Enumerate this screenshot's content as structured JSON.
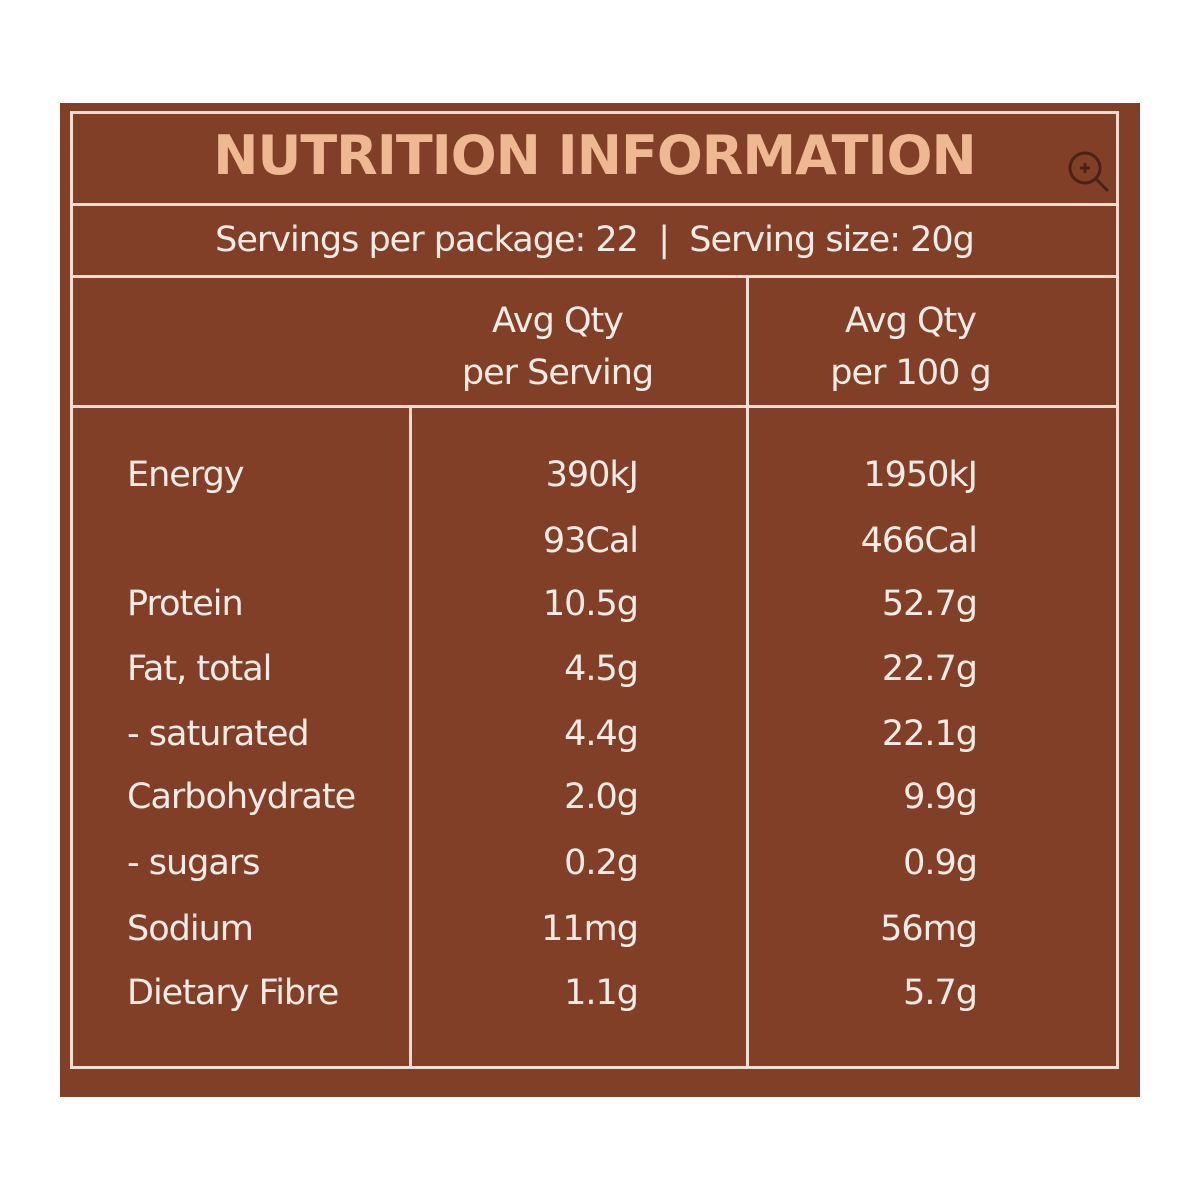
{
  "title": "NUTRITION INFORMATION",
  "servings_line": "Servings per package: 22  |  Serving size: 20g",
  "headers": {
    "col1": [
      "Avg Qty",
      "per Serving"
    ],
    "col2": [
      "Avg Qty",
      "per 100 g"
    ]
  },
  "rows": [
    {
      "label": "Energy",
      "per_serving": "390kJ",
      "per_100g": "1950kJ"
    },
    {
      "label": "",
      "per_serving": "93Cal",
      "per_100g": "466Cal"
    },
    {
      "label": "Protein",
      "per_serving": "10.5g",
      "per_100g": "52.7g"
    },
    {
      "label": "Fat, total",
      "per_serving": "4.5g",
      "per_100g": "22.7g"
    },
    {
      "label": "- saturated",
      "per_serving": "4.4g",
      "per_100g": "22.1g"
    },
    {
      "label": "Carbohydrate",
      "per_serving": "2.0g",
      "per_100g": "9.9g"
    },
    {
      "label": "- sugars",
      "per_serving": "0.2g",
      "per_100g": "0.9g"
    },
    {
      "label": "Sodium",
      "per_serving": "11mg",
      "per_100g": "56mg"
    },
    {
      "label": "Dietary Fibre",
      "per_serving": "1.1g",
      "per_100g": "5.7g"
    }
  ],
  "colors": {
    "background": "#823f28",
    "title": "#efb892",
    "text": "#f6ece4"
  },
  "icons": {
    "zoom": "zoom-in-icon"
  }
}
